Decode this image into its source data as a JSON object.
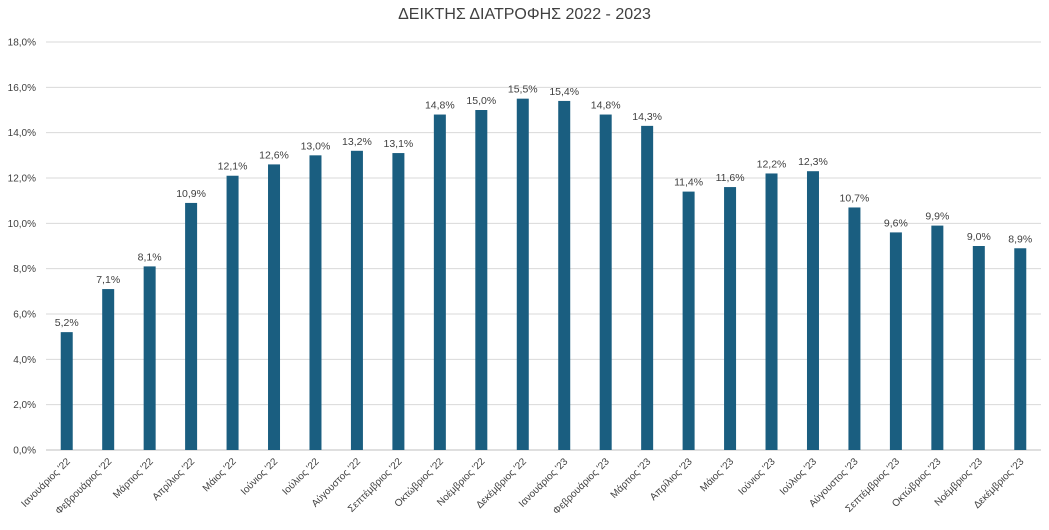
{
  "chart_data": {
    "type": "bar",
    "title": "ΔΕΙΚΤΗΣ ΔΙΑΤΡΟΦΗΣ 2022 - 2023",
    "xlabel": "",
    "ylabel": "",
    "ylim": [
      0,
      18
    ],
    "y_ticks": [
      "0,0%",
      "2,0%",
      "4,0%",
      "6,0%",
      "8,0%",
      "10,0%",
      "12,0%",
      "14,0%",
      "16,0%",
      "18,0%"
    ],
    "grid": true,
    "bar_color": "#1a5e80",
    "categories": [
      "Ιανουάριος '22",
      "Φεβρουάριος '22",
      "Μάρτιος '22",
      "Απρίλιος '22",
      "Μάιος '22",
      "Ιούνιος '22",
      "Ιούλιος '22",
      "Αύγουστος '22",
      "Σεπτέμβριος '22",
      "Οκτώβριος '22",
      "Νοέμβριος '22",
      "Δεκέμβριος '22",
      "Ιανουάριος '23",
      "Φεβρουάριος '23",
      "Μάρτιος '23",
      "Απρίλιος '23",
      "Μάιος '23",
      "Ιούνιος '23",
      "Ιούλιος '23",
      "Αύγουστος '23",
      "Σεπτέμβριος '23",
      "Οκτώβριος '23",
      "Νοέμβριος '23",
      "Δεκέμβριος '23"
    ],
    "values": [
      5.2,
      7.1,
      8.1,
      10.9,
      12.1,
      12.6,
      13.0,
      13.2,
      13.1,
      14.8,
      15.0,
      15.5,
      15.4,
      14.8,
      14.3,
      11.4,
      11.6,
      12.2,
      12.3,
      10.7,
      9.6,
      9.9,
      9.0,
      8.9
    ],
    "data_labels": [
      "5,2%",
      "7,1%",
      "8,1%",
      "10,9%",
      "12,1%",
      "12,6%",
      "13,0%",
      "13,2%",
      "13,1%",
      "14,8%",
      "15,0%",
      "15,5%",
      "15,4%",
      "14,8%",
      "14,3%",
      "11,4%",
      "11,6%",
      "12,2%",
      "12,3%",
      "10,7%",
      "9,6%",
      "9,9%",
      "9,0%",
      "8,9%"
    ]
  }
}
